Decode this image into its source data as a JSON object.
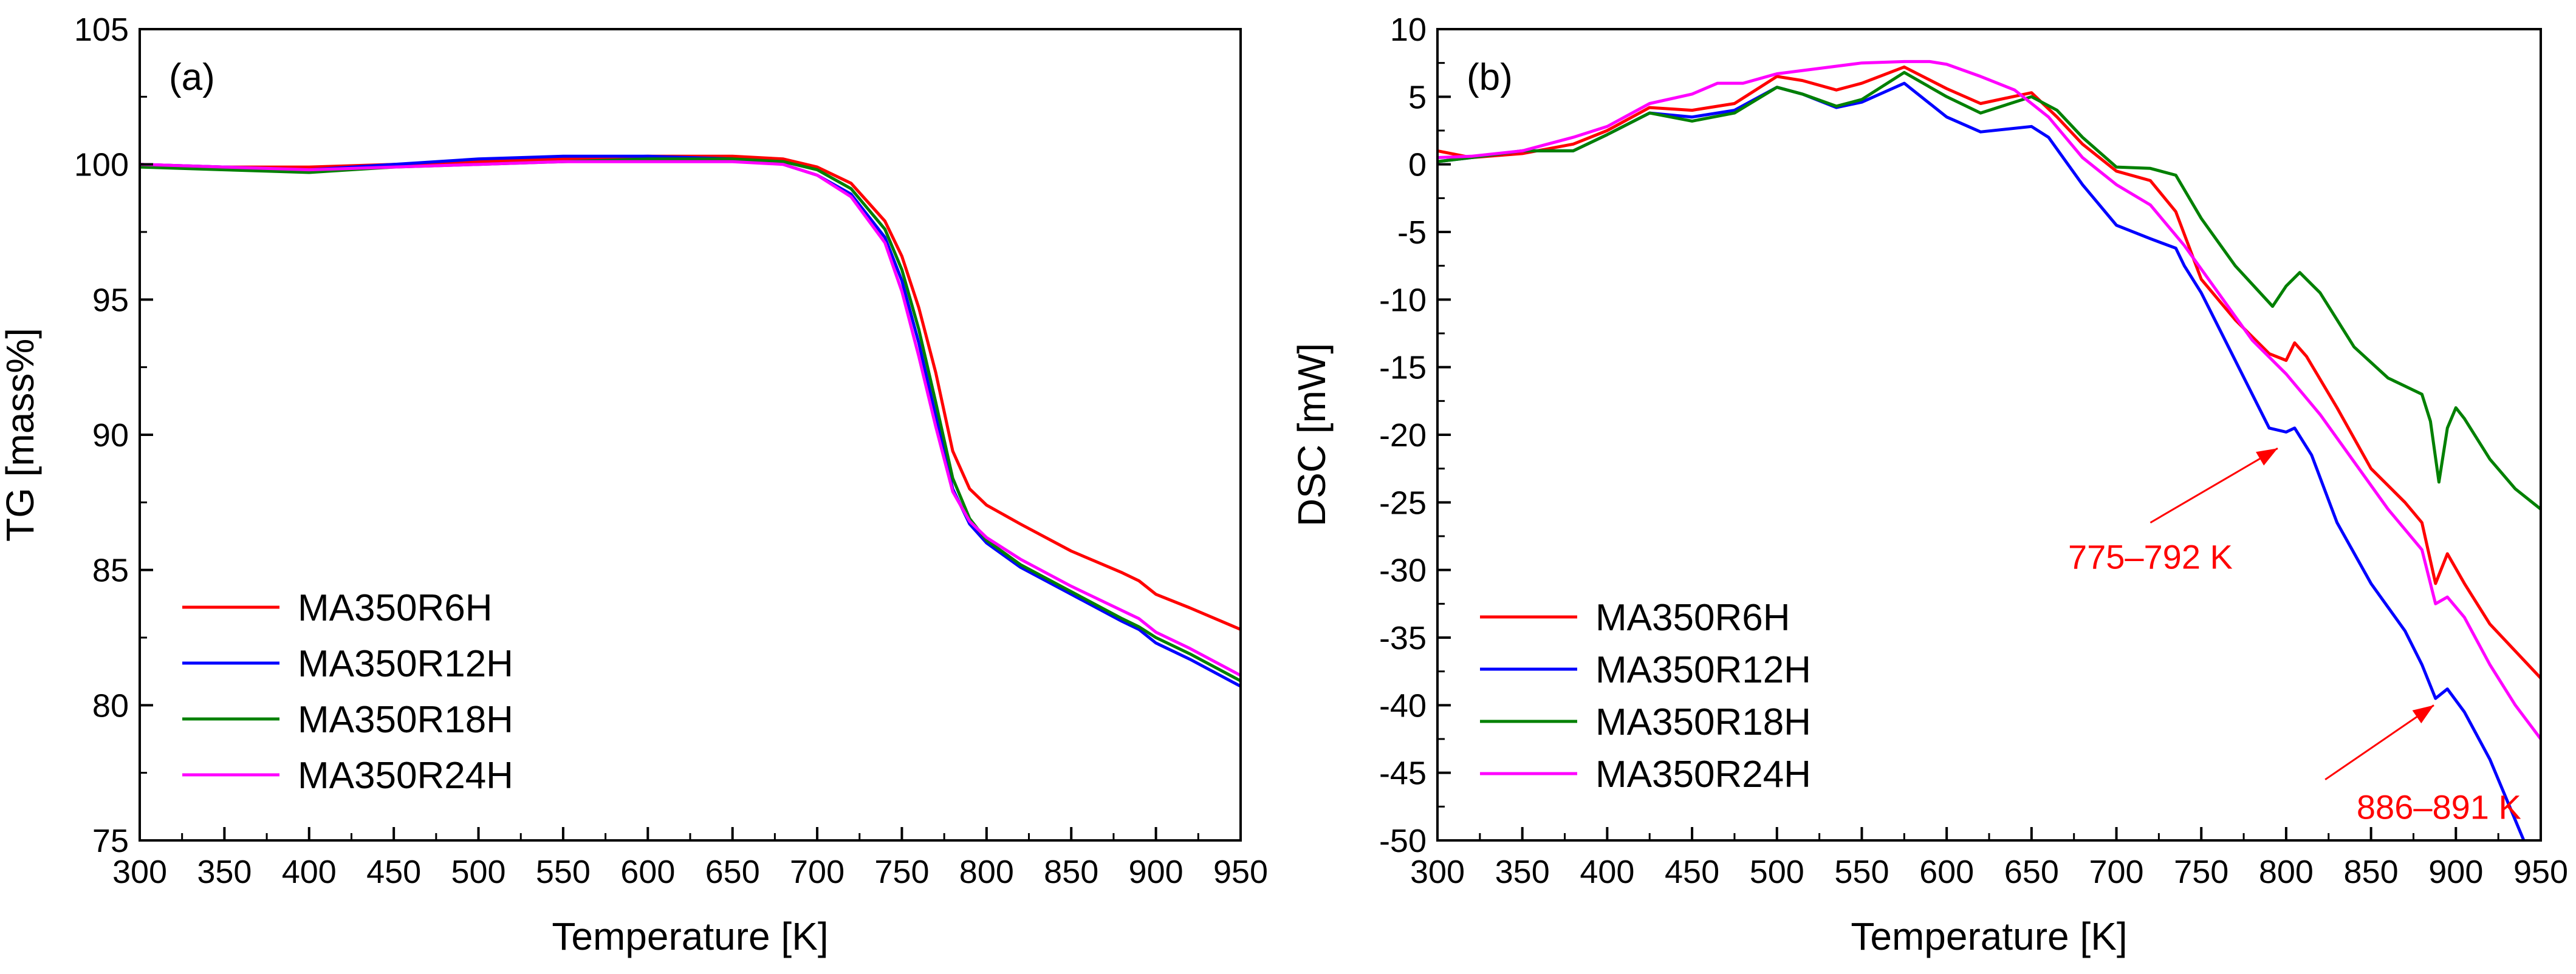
{
  "colors": {
    "MA350R6H": "#ff0000",
    "MA350R12H": "#0000ff",
    "MA350R18H": "#008000",
    "MA350R24H": "#ff00ff",
    "annotation": "#ff0000"
  },
  "chart_data": [
    {
      "type": "line",
      "panel_label": "(a)",
      "xlabel": "Temperature [K]",
      "ylabel": "TG [mass%]",
      "xlim": [
        300,
        950
      ],
      "ylim": [
        75,
        105
      ],
      "xticks": [
        300,
        350,
        400,
        450,
        500,
        550,
        600,
        650,
        700,
        750,
        800,
        850,
        900,
        950
      ],
      "yticks": [
        75,
        80,
        85,
        90,
        95,
        100,
        105
      ],
      "legend_position": "lower-left",
      "grid": false,
      "x": [
        300,
        350,
        400,
        450,
        500,
        550,
        600,
        650,
        680,
        700,
        720,
        740,
        750,
        760,
        770,
        780,
        790,
        800,
        820,
        850,
        880,
        890,
        900,
        920,
        950
      ],
      "series": [
        {
          "name": "MA350R6H",
          "color": "#ff0000",
          "values": [
            100.0,
            99.9,
            99.9,
            100.0,
            100.1,
            100.2,
            100.3,
            100.3,
            100.2,
            99.9,
            99.3,
            97.9,
            96.6,
            94.7,
            92.3,
            89.4,
            88.0,
            87.4,
            86.7,
            85.7,
            84.9,
            84.6,
            84.1,
            83.6,
            82.8
          ]
        },
        {
          "name": "MA350R12H",
          "color": "#0000ff",
          "values": [
            100.0,
            99.9,
            99.8,
            100.0,
            100.2,
            100.3,
            100.3,
            100.2,
            100.0,
            99.6,
            98.9,
            97.3,
            95.7,
            93.4,
            90.7,
            88.0,
            86.7,
            86.0,
            85.1,
            84.1,
            83.1,
            82.8,
            82.3,
            81.7,
            80.7
          ]
        },
        {
          "name": "MA350R18H",
          "color": "#008000",
          "values": [
            99.9,
            99.8,
            99.7,
            99.9,
            100.0,
            100.1,
            100.2,
            100.2,
            100.1,
            99.8,
            99.1,
            97.6,
            96.1,
            93.9,
            91.2,
            88.4,
            86.9,
            86.1,
            85.2,
            84.2,
            83.2,
            82.9,
            82.5,
            81.9,
            80.9
          ]
        },
        {
          "name": "MA350R24H",
          "color": "#ff00ff",
          "values": [
            100.0,
            99.9,
            99.8,
            99.9,
            100.0,
            100.1,
            100.1,
            100.1,
            100.0,
            99.6,
            98.8,
            97.1,
            95.3,
            92.9,
            90.3,
            87.9,
            86.8,
            86.2,
            85.4,
            84.4,
            83.5,
            83.2,
            82.7,
            82.1,
            81.1
          ]
        }
      ]
    },
    {
      "type": "line",
      "panel_label": "(b)",
      "xlabel": "Temperature [K]",
      "ylabel": "DSC [mW]",
      "xlim": [
        300,
        950
      ],
      "ylim": [
        -50,
        10
      ],
      "xticks": [
        300,
        350,
        400,
        450,
        500,
        550,
        600,
        650,
        700,
        750,
        800,
        850,
        900,
        950
      ],
      "yticks": [
        -50,
        -45,
        -40,
        -35,
        -30,
        -25,
        -20,
        -15,
        -10,
        -5,
        0,
        5,
        10
      ],
      "legend_position": "lower-left",
      "grid": false,
      "series": [
        {
          "name": "MA350R6H",
          "color": "#ff0000",
          "x": [
            300,
            320,
            350,
            380,
            400,
            425,
            450,
            475,
            500,
            515,
            535,
            550,
            575,
            600,
            620,
            650,
            665,
            680,
            700,
            720,
            735,
            750,
            770,
            790,
            800,
            805,
            812,
            830,
            850,
            870,
            880,
            888,
            895,
            905,
            920,
            950
          ],
          "y": [
            1.0,
            0.5,
            0.8,
            1.5,
            2.5,
            4.2,
            4.0,
            4.5,
            6.5,
            6.2,
            5.5,
            6.0,
            7.2,
            5.6,
            4.5,
            5.3,
            3.5,
            1.5,
            -0.5,
            -1.2,
            -3.5,
            -8.5,
            -11.5,
            -14.0,
            -14.5,
            -13.2,
            -14.2,
            -18.0,
            -22.5,
            -25.0,
            -26.5,
            -31.0,
            -28.8,
            -31.0,
            -34.0,
            -38.0
          ]
        },
        {
          "name": "MA350R12H",
          "color": "#0000ff",
          "x": [
            300,
            320,
            350,
            380,
            400,
            425,
            450,
            475,
            500,
            515,
            535,
            550,
            575,
            600,
            620,
            650,
            660,
            680,
            700,
            720,
            735,
            740,
            750,
            770,
            790,
            800,
            805,
            815,
            830,
            850,
            870,
            880,
            888,
            895,
            905,
            920,
            935,
            950
          ],
          "y": [
            0.2,
            0.5,
            1.0,
            1.0,
            2.2,
            3.8,
            3.5,
            4.0,
            5.7,
            5.2,
            4.2,
            4.6,
            6.0,
            3.5,
            2.4,
            2.8,
            2.0,
            -1.5,
            -4.5,
            -5.5,
            -6.2,
            -7.5,
            -9.5,
            -14.5,
            -19.5,
            -19.8,
            -19.5,
            -21.5,
            -26.5,
            -31.0,
            -34.5,
            -37.0,
            -39.5,
            -38.8,
            -40.5,
            -44.0,
            -48.5,
            -53.0
          ]
        },
        {
          "name": "MA350R18H",
          "color": "#008000",
          "x": [
            300,
            320,
            350,
            380,
            400,
            425,
            450,
            475,
            500,
            515,
            535,
            550,
            575,
            600,
            620,
            650,
            665,
            680,
            700,
            720,
            735,
            750,
            770,
            792,
            800,
            808,
            820,
            840,
            860,
            880,
            885,
            890,
            895,
            900,
            905,
            920,
            935,
            950
          ],
          "y": [
            0.2,
            0.5,
            1.0,
            1.0,
            2.2,
            3.8,
            3.2,
            3.8,
            5.7,
            5.2,
            4.3,
            4.8,
            6.8,
            5.0,
            3.8,
            5.0,
            4.0,
            2.0,
            -0.2,
            -0.3,
            -0.8,
            -4.0,
            -7.5,
            -10.5,
            -9.0,
            -8.0,
            -9.5,
            -13.5,
            -15.8,
            -17.0,
            -19.0,
            -23.5,
            -19.5,
            -18.0,
            -18.8,
            -21.8,
            -24.0,
            -25.5
          ]
        },
        {
          "name": "MA350R24H",
          "color": "#ff00ff",
          "x": [
            300,
            320,
            350,
            380,
            400,
            425,
            450,
            465,
            480,
            500,
            525,
            550,
            575,
            590,
            600,
            620,
            640,
            660,
            680,
            700,
            720,
            740,
            760,
            780,
            800,
            820,
            840,
            860,
            880,
            888,
            895,
            905,
            920,
            935,
            950
          ],
          "y": [
            0.5,
            0.6,
            1.0,
            2.0,
            2.8,
            4.5,
            5.2,
            6.0,
            6.0,
            6.7,
            7.1,
            7.5,
            7.6,
            7.6,
            7.4,
            6.5,
            5.5,
            3.5,
            0.5,
            -1.5,
            -3.0,
            -6.0,
            -9.5,
            -13.0,
            -15.5,
            -18.5,
            -22.0,
            -25.5,
            -28.5,
            -32.5,
            -32.0,
            -33.5,
            -37.0,
            -40.0,
            -42.5
          ]
        }
      ],
      "annotations": [
        {
          "text": "775–792 K",
          "target": [
            795,
            -21
          ],
          "tail": [
            720,
            -26.5
          ],
          "label_at": [
            720,
            -29
          ]
        },
        {
          "text": "886–891 K",
          "target": [
            887,
            -40.0
          ],
          "tail": [
            823,
            -45.5
          ],
          "label_at": [
            890,
            -47.5
          ]
        }
      ]
    }
  ]
}
